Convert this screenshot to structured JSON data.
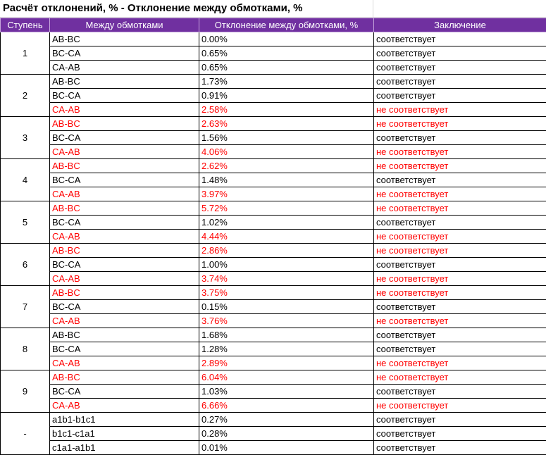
{
  "title": "Расчёт отклонений, % - Отклонение между обмотками, %",
  "headers": [
    "Ступень",
    "Между обмотками",
    "Отклонение между обмотками, %",
    "Заключение"
  ],
  "groups": [
    {
      "step": "1",
      "rows": [
        {
          "pair": "AB-BC",
          "value": "0.00%",
          "conclusion": "соответствует",
          "bad": false
        },
        {
          "pair": "BC-CA",
          "value": "0.65%",
          "conclusion": "соответствует",
          "bad": false
        },
        {
          "pair": "CA-AB",
          "value": "0.65%",
          "conclusion": "соответствует",
          "bad": false
        }
      ]
    },
    {
      "step": "2",
      "rows": [
        {
          "pair": "AB-BC",
          "value": "1.73%",
          "conclusion": "соответствует",
          "bad": false
        },
        {
          "pair": "BC-CA",
          "value": "0.91%",
          "conclusion": "соответствует",
          "bad": false
        },
        {
          "pair": "CA-AB",
          "value": "2.58%",
          "conclusion": "не соответствует",
          "bad": true
        }
      ]
    },
    {
      "step": "3",
      "rows": [
        {
          "pair": "AB-BC",
          "value": "2.63%",
          "conclusion": "не соответствует",
          "bad": true
        },
        {
          "pair": "BC-CA",
          "value": "1.56%",
          "conclusion": "соответствует",
          "bad": false
        },
        {
          "pair": "CA-AB",
          "value": "4.06%",
          "conclusion": "не соответствует",
          "bad": true
        }
      ]
    },
    {
      "step": "4",
      "rows": [
        {
          "pair": "AB-BC",
          "value": "2.62%",
          "conclusion": "не соответствует",
          "bad": true
        },
        {
          "pair": "BC-CA",
          "value": "1.48%",
          "conclusion": "соответствует",
          "bad": false
        },
        {
          "pair": "CA-AB",
          "value": "3.97%",
          "conclusion": "не соответствует",
          "bad": true
        }
      ]
    },
    {
      "step": "5",
      "rows": [
        {
          "pair": "AB-BC",
          "value": "5.72%",
          "conclusion": "не соответствует",
          "bad": true
        },
        {
          "pair": "BC-CA",
          "value": "1.02%",
          "conclusion": "соответствует",
          "bad": false
        },
        {
          "pair": "CA-AB",
          "value": "4.44%",
          "conclusion": "не соответствует",
          "bad": true
        }
      ]
    },
    {
      "step": "6",
      "rows": [
        {
          "pair": "AB-BC",
          "value": "2.86%",
          "conclusion": "не соответствует",
          "bad": true
        },
        {
          "pair": "BC-CA",
          "value": "1.00%",
          "conclusion": "соответствует",
          "bad": false
        },
        {
          "pair": "CA-AB",
          "value": "3.74%",
          "conclusion": "не соответствует",
          "bad": true
        }
      ]
    },
    {
      "step": "7",
      "rows": [
        {
          "pair": "AB-BC",
          "value": "3.75%",
          "conclusion": "не соответствует",
          "bad": true
        },
        {
          "pair": "BC-CA",
          "value": "0.15%",
          "conclusion": "соответствует",
          "bad": false
        },
        {
          "pair": "CA-AB",
          "value": "3.76%",
          "conclusion": "не соответствует",
          "bad": true
        }
      ]
    },
    {
      "step": "8",
      "rows": [
        {
          "pair": "AB-BC",
          "value": "1.68%",
          "conclusion": "соответствует",
          "bad": false
        },
        {
          "pair": "BC-CA",
          "value": "1.28%",
          "conclusion": "соответствует",
          "bad": false
        },
        {
          "pair": "CA-AB",
          "value": "2.89%",
          "conclusion": "не соответствует",
          "bad": true
        }
      ]
    },
    {
      "step": "9",
      "rows": [
        {
          "pair": "AB-BC",
          "value": "6.04%",
          "conclusion": "не соответствует",
          "bad": true
        },
        {
          "pair": "BC-CA",
          "value": "1.03%",
          "conclusion": "соответствует",
          "bad": false
        },
        {
          "pair": "CA-AB",
          "value": "6.66%",
          "conclusion": "не соответствует",
          "bad": true
        }
      ]
    },
    {
      "step": "-",
      "rows": [
        {
          "pair": "a1b1-b1c1",
          "value": "0.27%",
          "conclusion": "соответствует",
          "bad": false
        },
        {
          "pair": "b1c1-c1a1",
          "value": "0.28%",
          "conclusion": "соответствует",
          "bad": false
        },
        {
          "pair": "c1a1-a1b1",
          "value": "0.01%",
          "conclusion": "соответствует",
          "bad": false
        }
      ]
    }
  ],
  "colors": {
    "header_bg": "#7030a0",
    "header_text": "#ffffff",
    "bad_text": "#ff0000",
    "ok_text": "#000000"
  }
}
